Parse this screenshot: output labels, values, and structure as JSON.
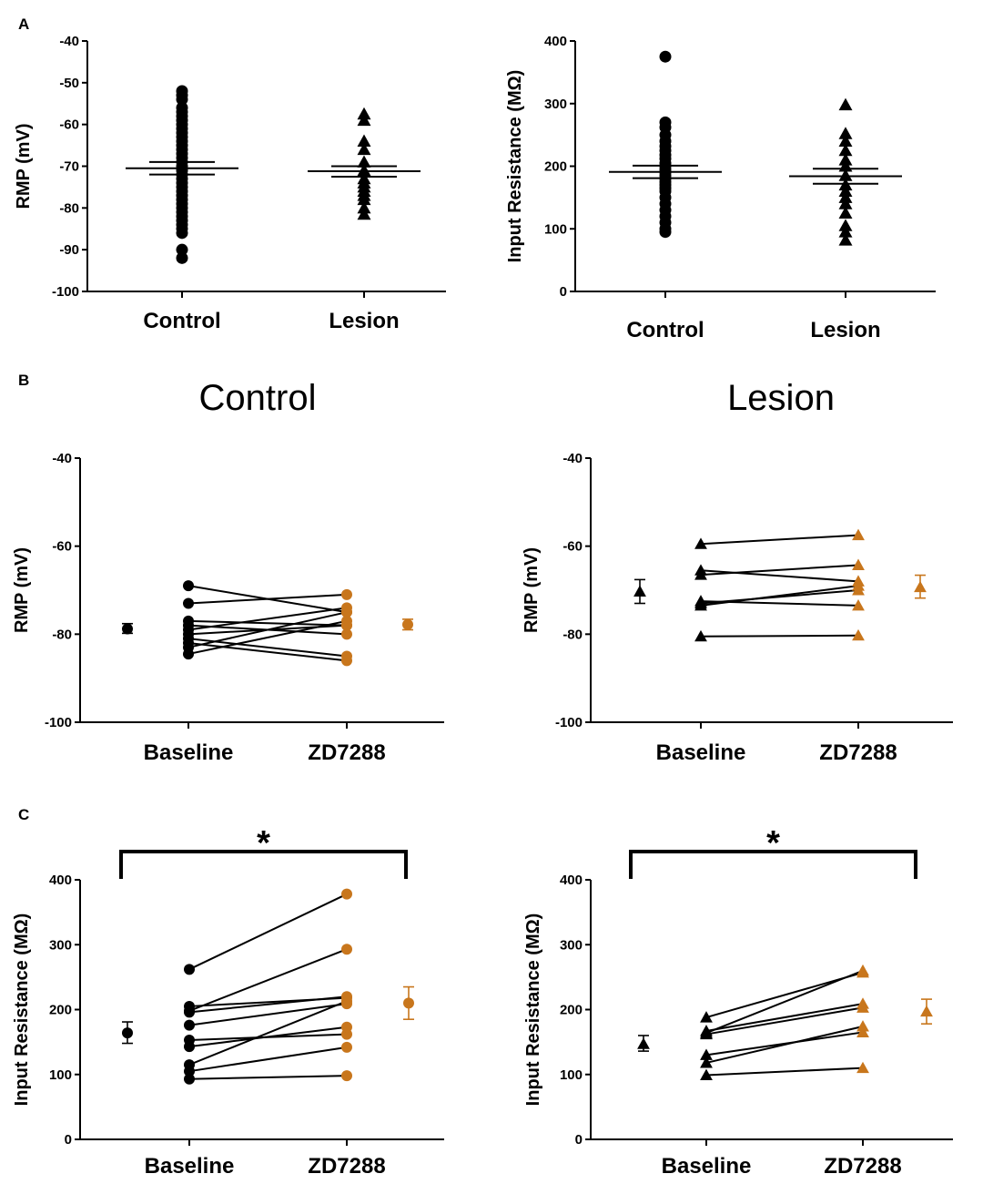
{
  "panel_labels": [
    "A",
    "B",
    "C"
  ],
  "section_titles": {
    "control": "Control",
    "lesion": "Lesion"
  },
  "colors": {
    "baseline": "#000000",
    "zd7288": "#c8761c"
  },
  "chart_data": [
    {
      "id": "a1",
      "type": "scatter",
      "title": "",
      "ylabel": "RMP (mV)",
      "ylim": [
        -100,
        -40
      ],
      "yticks": [
        -100,
        -90,
        -80,
        -70,
        -60,
        -50,
        -40
      ],
      "grid": false,
      "categories": [
        "Control",
        "Lesion"
      ],
      "groups": [
        {
          "name": "Control",
          "marker": "circle",
          "mean": -70.5,
          "sem_low": -72,
          "sem_high": -69,
          "values": [
            -52,
            -53,
            -54,
            -56,
            -57,
            -58,
            -59,
            -60,
            -61,
            -62,
            -63,
            -64,
            -65,
            -66,
            -67,
            -68,
            -69,
            -70,
            -71,
            -72,
            -73,
            -74,
            -75,
            -76,
            -77,
            -78,
            -79,
            -80,
            -81,
            -82,
            -83,
            -84,
            -85,
            -86,
            -90,
            -92
          ]
        },
        {
          "name": "Lesion",
          "marker": "triangle",
          "mean": -71.2,
          "sem_low": -72.5,
          "sem_high": -70,
          "values": [
            -57.5,
            -59,
            -64,
            -66,
            -69,
            -71,
            -73,
            -74,
            -75,
            -76,
            -77,
            -78,
            -80,
            -81.5
          ]
        }
      ]
    },
    {
      "id": "a2",
      "type": "scatter",
      "title": "",
      "ylabel": "Input Resistance (MΩ)",
      "ylim": [
        0,
        400
      ],
      "yticks": [
        0,
        100,
        200,
        300,
        400
      ],
      "grid": false,
      "categories": [
        "Control",
        "Lesion"
      ],
      "groups": [
        {
          "name": "Control",
          "marker": "circle",
          "mean": 191,
          "sem_low": 181,
          "sem_high": 201,
          "values": [
            375,
            270,
            262,
            250,
            240,
            232,
            225,
            218,
            212,
            205,
            200,
            195,
            190,
            185,
            180,
            175,
            170,
            165,
            160,
            150,
            140,
            130,
            120,
            110,
            100,
            95
          ]
        },
        {
          "name": "Lesion",
          "marker": "triangle",
          "mean": 184,
          "sem_low": 172,
          "sem_high": 196,
          "values": [
            298,
            252,
            240,
            225,
            210,
            200,
            185,
            170,
            160,
            150,
            140,
            125,
            105,
            95,
            82
          ]
        }
      ]
    },
    {
      "id": "b1",
      "type": "line",
      "title": "",
      "ylabel": "RMP (mV)",
      "ylim": [
        -100,
        -40
      ],
      "yticks": [
        -100,
        -80,
        -60,
        -40
      ],
      "grid": false,
      "categories": [
        "Baseline",
        "ZD7288"
      ],
      "marker": "circle",
      "summary": [
        {
          "name": "Baseline",
          "mean": -78.8,
          "sem_low": -79.8,
          "sem_high": -77.6
        },
        {
          "name": "ZD7288",
          "mean": -77.8,
          "sem_low": -79.0,
          "sem_high": -76.6
        }
      ],
      "pairs": [
        [
          -69,
          -75
        ],
        [
          -73,
          -71
        ],
        [
          -77,
          -78
        ],
        [
          -78,
          -80
        ],
        [
          -79,
          -74
        ],
        [
          -80,
          -78
        ],
        [
          -81,
          -85
        ],
        [
          -82,
          -86
        ],
        [
          -83,
          -75
        ],
        [
          -84.5,
          -77
        ]
      ]
    },
    {
      "id": "b2",
      "type": "line",
      "title": "",
      "ylabel": "RMP (mV)",
      "ylim": [
        -100,
        -40
      ],
      "yticks": [
        -100,
        -80,
        -60,
        -40
      ],
      "grid": false,
      "categories": [
        "Baseline",
        "ZD7288"
      ],
      "marker": "triangle",
      "summary": [
        {
          "name": "Baseline",
          "mean": -70.3,
          "sem_low": -73,
          "sem_high": -67.6
        },
        {
          "name": "ZD7288",
          "mean": -69.3,
          "sem_low": -71.8,
          "sem_high": -66.6
        }
      ],
      "pairs": [
        [
          -59.5,
          -57.5
        ],
        [
          -65.5,
          -68
        ],
        [
          -66.5,
          -64.3
        ],
        [
          -72.5,
          -73.5
        ],
        [
          -73,
          -70
        ],
        [
          -73.5,
          -69
        ],
        [
          -80.5,
          -80.3
        ]
      ]
    },
    {
      "id": "c1",
      "type": "line",
      "title": "",
      "ylabel": "Input Resistance (MΩ)",
      "ylim": [
        0,
        400
      ],
      "yticks": [
        0,
        100,
        200,
        300,
        400
      ],
      "grid": false,
      "categories": [
        "Baseline",
        "ZD7288"
      ],
      "marker": "circle",
      "significance": "*",
      "summary": [
        {
          "name": "Baseline",
          "mean": 164,
          "sem_low": 148,
          "sem_high": 181
        },
        {
          "name": "ZD7288",
          "mean": 210,
          "sem_low": 185,
          "sem_high": 235
        }
      ],
      "pairs": [
        [
          262,
          378
        ],
        [
          205,
          218
        ],
        [
          198,
          293
        ],
        [
          196,
          220
        ],
        [
          176,
          209
        ],
        [
          153,
          162
        ],
        [
          143,
          173
        ],
        [
          115,
          213
        ],
        [
          105,
          142
        ],
        [
          93,
          98
        ]
      ]
    },
    {
      "id": "c2",
      "type": "line",
      "title": "",
      "ylabel": "Input Resistance (MΩ)",
      "ylim": [
        0,
        400
      ],
      "yticks": [
        0,
        100,
        200,
        300,
        400
      ],
      "grid": false,
      "categories": [
        "Baseline",
        "ZD7288"
      ],
      "marker": "triangle",
      "significance": "*",
      "summary": [
        {
          "name": "Baseline",
          "mean": 147,
          "sem_low": 136,
          "sem_high": 160
        },
        {
          "name": "ZD7288",
          "mean": 197,
          "sem_low": 178,
          "sem_high": 216
        }
      ],
      "pairs": [
        [
          188,
          257
        ],
        [
          167,
          209
        ],
        [
          164,
          260
        ],
        [
          162,
          203
        ],
        [
          130,
          165
        ],
        [
          118,
          174
        ],
        [
          99,
          110
        ]
      ]
    }
  ]
}
